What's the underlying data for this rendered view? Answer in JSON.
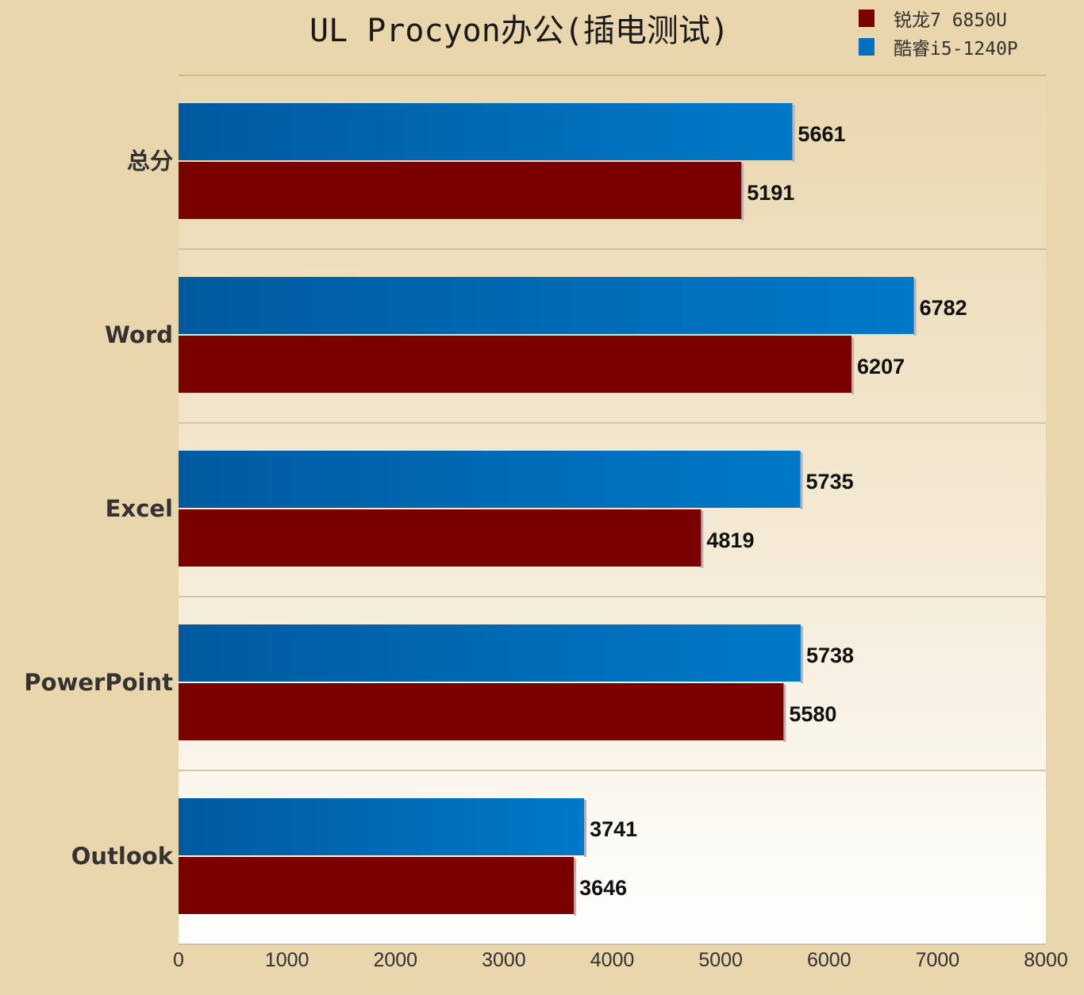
{
  "chart_data": {
    "type": "bar",
    "orientation": "horizontal",
    "title": "UL Procyon办公(插电测试)",
    "categories": [
      "总分",
      "Word",
      "Excel",
      "PowerPoint",
      "Outlook"
    ],
    "series": [
      {
        "name": "锐龙7 6850U",
        "color": "#7a0000",
        "values": [
          5191,
          6207,
          4819,
          5580,
          3646
        ]
      },
      {
        "name": "酷睿i5-1240P",
        "color": "#0070c0",
        "values": [
          5661,
          6782,
          5735,
          5738,
          3741
        ]
      }
    ],
    "xlim": [
      0,
      8000
    ],
    "xticks": [
      "0",
      "1000",
      "2000",
      "3000",
      "4000",
      "5000",
      "6000",
      "7000",
      "8000"
    ],
    "legend_position": "top-right",
    "grid": "horizontal category separators"
  }
}
